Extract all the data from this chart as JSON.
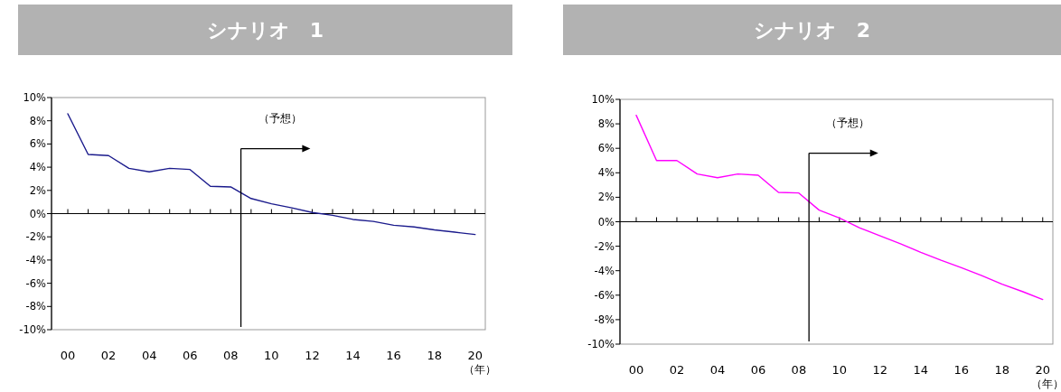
{
  "chart_data": [
    {
      "type": "line",
      "title": "シナリオ　1",
      "xlabel": "（年）",
      "x": [
        2000,
        2001,
        2002,
        2003,
        2004,
        2005,
        2006,
        2007,
        2008,
        2009,
        2010,
        2011,
        2012,
        2013,
        2014,
        2015,
        2016,
        2017,
        2018,
        2019,
        2020
      ],
      "series": [
        {
          "color": "#1a1a8c",
          "values": [
            8.6,
            5.1,
            5.0,
            3.9,
            3.6,
            3.9,
            3.8,
            2.35,
            2.3,
            1.3,
            0.85,
            0.5,
            0.1,
            -0.15,
            -0.5,
            -0.67,
            -1.0,
            -1.15,
            -1.4,
            -1.6,
            -1.8
          ]
        }
      ],
      "xlim": [
        1999.2,
        2020.5
      ],
      "ylim": [
        -10,
        10
      ],
      "xticks": [
        {
          "value": 2000,
          "label": "00"
        },
        {
          "value": 2001,
          "label": null
        },
        {
          "value": 2002,
          "label": "02"
        },
        {
          "value": 2003,
          "label": null
        },
        {
          "value": 2004,
          "label": "04"
        },
        {
          "value": 2005,
          "label": null
        },
        {
          "value": 2006,
          "label": "06"
        },
        {
          "value": 2007,
          "label": null
        },
        {
          "value": 2008,
          "label": "08"
        },
        {
          "value": 2009,
          "label": null
        },
        {
          "value": 2010,
          "label": "10"
        },
        {
          "value": 2011,
          "label": null
        },
        {
          "value": 2012,
          "label": "12"
        },
        {
          "value": 2013,
          "label": null
        },
        {
          "value": 2014,
          "label": "14"
        },
        {
          "value": 2015,
          "label": null
        },
        {
          "value": 2016,
          "label": "16"
        },
        {
          "value": 2017,
          "label": null
        },
        {
          "value": 2018,
          "label": "18"
        },
        {
          "value": 2019,
          "label": null
        },
        {
          "value": 2020,
          "label": "20"
        }
      ],
      "yticks": [
        {
          "value": -10,
          "label": "-10%"
        },
        {
          "value": -8,
          "label": "-8%"
        },
        {
          "value": -6,
          "label": "-6%"
        },
        {
          "value": -4,
          "label": "-4%"
        },
        {
          "value": -2,
          "label": "-2%"
        },
        {
          "value": 0,
          "label": "0%"
        },
        {
          "value": 2,
          "label": "2%"
        },
        {
          "value": 4,
          "label": "4%"
        },
        {
          "value": 6,
          "label": "6%"
        },
        {
          "value": 8,
          "label": "8%"
        },
        {
          "value": 10,
          "label": "10%"
        }
      ],
      "ref_lines": [
        {
          "axis": "x",
          "value": 2008.5,
          "label": "（予想）",
          "color": "#000000"
        }
      ]
    },
    {
      "type": "line",
      "title": "シナリオ　2",
      "xlabel": "（年）",
      "x": [
        2000,
        2001,
        2002,
        2003,
        2004,
        2005,
        2006,
        2007,
        2008,
        2009,
        2010,
        2011,
        2012,
        2013,
        2014,
        2015,
        2016,
        2017,
        2018,
        2019,
        2020
      ],
      "series": [
        {
          "color": "#ff00ff",
          "values": [
            8.7,
            5.0,
            5.0,
            3.9,
            3.6,
            3.9,
            3.8,
            2.4,
            2.35,
            0.95,
            0.3,
            -0.5,
            -1.15,
            -1.8,
            -2.5,
            -3.15,
            -3.75,
            -4.4,
            -5.1,
            -5.7,
            -6.35
          ]
        }
      ],
      "xlim": [
        1999.2,
        2020.5
      ],
      "ylim": [
        -10,
        10
      ],
      "xticks": [
        {
          "value": 2000,
          "label": "00"
        },
        {
          "value": 2001,
          "label": null
        },
        {
          "value": 2002,
          "label": "02"
        },
        {
          "value": 2003,
          "label": null
        },
        {
          "value": 2004,
          "label": "04"
        },
        {
          "value": 2005,
          "label": null
        },
        {
          "value": 2006,
          "label": "06"
        },
        {
          "value": 2007,
          "label": null
        },
        {
          "value": 2008,
          "label": "08"
        },
        {
          "value": 2009,
          "label": null
        },
        {
          "value": 2010,
          "label": "10"
        },
        {
          "value": 2011,
          "label": null
        },
        {
          "value": 2012,
          "label": "12"
        },
        {
          "value": 2013,
          "label": null
        },
        {
          "value": 2014,
          "label": "14"
        },
        {
          "value": 2015,
          "label": null
        },
        {
          "value": 2016,
          "label": "16"
        },
        {
          "value": 2017,
          "label": null
        },
        {
          "value": 2018,
          "label": "18"
        },
        {
          "value": 2019,
          "label": null
        },
        {
          "value": 2020,
          "label": "20"
        }
      ],
      "yticks": [
        {
          "value": -10,
          "label": "-10%"
        },
        {
          "value": -8,
          "label": "-8%"
        },
        {
          "value": -6,
          "label": "-6%"
        },
        {
          "value": -4,
          "label": "-4%"
        },
        {
          "value": -2,
          "label": "-2%"
        },
        {
          "value": 0,
          "label": "0%"
        },
        {
          "value": 2,
          "label": "2%"
        },
        {
          "value": 4,
          "label": "4%"
        },
        {
          "value": 6,
          "label": "6%"
        },
        {
          "value": 8,
          "label": "8%"
        },
        {
          "value": 10,
          "label": "10%"
        }
      ],
      "ref_lines": [
        {
          "axis": "x",
          "value": 2008.5,
          "label": "（予想）",
          "color": "#000000"
        }
      ]
    }
  ]
}
